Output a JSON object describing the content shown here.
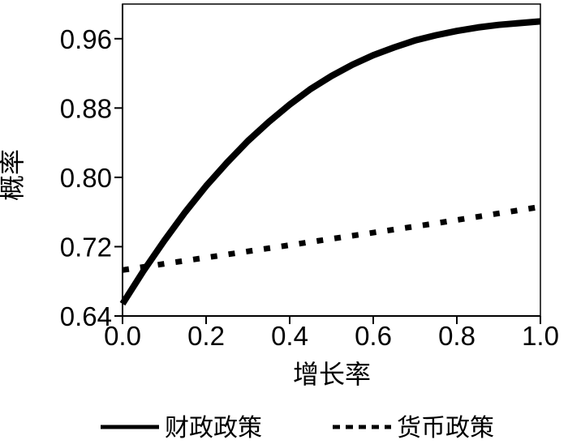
{
  "chart_data": {
    "type": "line",
    "title": "",
    "xlabel": "增长率",
    "ylabel": "概率",
    "xlim": [
      0,
      1
    ],
    "ylim": [
      0.64,
      1.0
    ],
    "x_ticks": [
      0.0,
      0.2,
      0.4,
      0.6,
      0.8,
      1.0
    ],
    "x_tick_labels": [
      "0.0",
      "0.2",
      "0.4",
      "0.6",
      "0.8",
      "1.0"
    ],
    "y_ticks": [
      0.64,
      0.72,
      0.8,
      0.88,
      0.96
    ],
    "y_tick_labels": [
      "0.64",
      "0.72",
      "0.80",
      "0.88",
      "0.96"
    ],
    "grid": false,
    "legend_position": "bottom",
    "series": [
      {
        "name": "财政政策",
        "line_style": "solid",
        "color": "#000000",
        "x": [
          0.0,
          0.05,
          0.1,
          0.15,
          0.2,
          0.25,
          0.3,
          0.35,
          0.4,
          0.45,
          0.5,
          0.55,
          0.6,
          0.65,
          0.7,
          0.75,
          0.8,
          0.85,
          0.9,
          0.95,
          1.0
        ],
        "y": [
          0.654,
          0.692,
          0.727,
          0.76,
          0.79,
          0.817,
          0.842,
          0.864,
          0.884,
          0.902,
          0.917,
          0.93,
          0.941,
          0.95,
          0.958,
          0.964,
          0.969,
          0.973,
          0.976,
          0.978,
          0.98
        ]
      },
      {
        "name": "货币政策",
        "line_style": "dotted",
        "color": "#000000",
        "x": [
          0.0,
          0.25,
          0.5,
          0.75,
          1.0
        ],
        "y": [
          0.693,
          0.711,
          0.729,
          0.747,
          0.766
        ]
      }
    ]
  }
}
